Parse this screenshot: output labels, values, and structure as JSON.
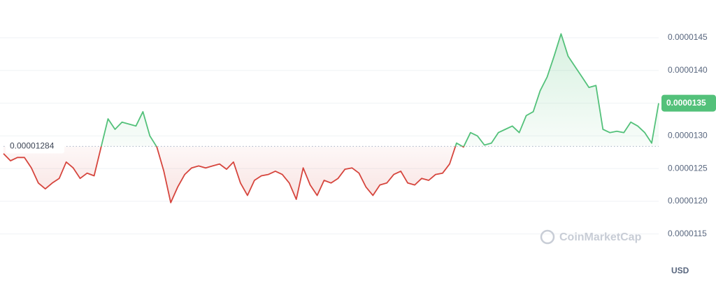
{
  "chart_data": {
    "type": "line",
    "values": [
      1.273e-05,
      1.262e-05,
      1.267e-05,
      1.267e-05,
      1.251e-05,
      1.228e-05,
      1.219e-05,
      1.228e-05,
      1.235e-05,
      1.26e-05,
      1.251e-05,
      1.235e-05,
      1.243e-05,
      1.239e-05,
      1.283e-05,
      1.326e-05,
      1.31e-05,
      1.321e-05,
      1.318e-05,
      1.315e-05,
      1.337e-05,
      1.3e-05,
      1.283e-05,
      1.246e-05,
      1.198e-05,
      1.222e-05,
      1.241e-05,
      1.251e-05,
      1.254e-05,
      1.251e-05,
      1.254e-05,
      1.257e-05,
      1.249e-05,
      1.26e-05,
      1.228e-05,
      1.209e-05,
      1.232e-05,
      1.239e-05,
      1.241e-05,
      1.246e-05,
      1.241e-05,
      1.228e-05,
      1.203e-05,
      1.251e-05,
      1.225e-05,
      1.209e-05,
      1.232e-05,
      1.228e-05,
      1.235e-05,
      1.249e-05,
      1.251e-05,
      1.243e-05,
      1.222e-05,
      1.209e-05,
      1.225e-05,
      1.228e-05,
      1.241e-05,
      1.246e-05,
      1.228e-05,
      1.225e-05,
      1.235e-05,
      1.232e-05,
      1.241e-05,
      1.243e-05,
      1.257e-05,
      1.289e-05,
      1.283e-05,
      1.305e-05,
      1.3e-05,
      1.286e-05,
      1.289e-05,
      1.305e-05,
      1.31e-05,
      1.315e-05,
      1.305e-05,
      1.331e-05,
      1.337e-05,
      1.369e-05,
      1.39e-05,
      1.422e-05,
      1.456e-05,
      1.422e-05,
      1.406e-05,
      1.39e-05,
      1.374e-05,
      1.377e-05,
      1.31e-05,
      1.305e-05,
      1.307e-05,
      1.305e-05,
      1.321e-05,
      1.315e-05,
      1.305e-05,
      1.289e-05,
      1.35e-05
    ],
    "baseline": 1.284e-05,
    "current_price": 1.35e-05,
    "ylim": [
      1.091e-05,
      1.497e-05
    ],
    "yticks": [
      1.15e-05,
      {
        "value": 1.2e-05,
        "label": "0.0000120"
      },
      1.25e-05,
      {
        "value": 1.3e-05,
        "label": "0.0000130"
      },
      1.35e-05,
      {
        "value": 1.4e-05,
        "label": "0.0000140"
      },
      1.45e-05
    ],
    "grid": true,
    "up_color": "#53c17a",
    "down_color": "#d6453d",
    "currency": "USD",
    "watermark": "CoinMarketCap"
  }
}
